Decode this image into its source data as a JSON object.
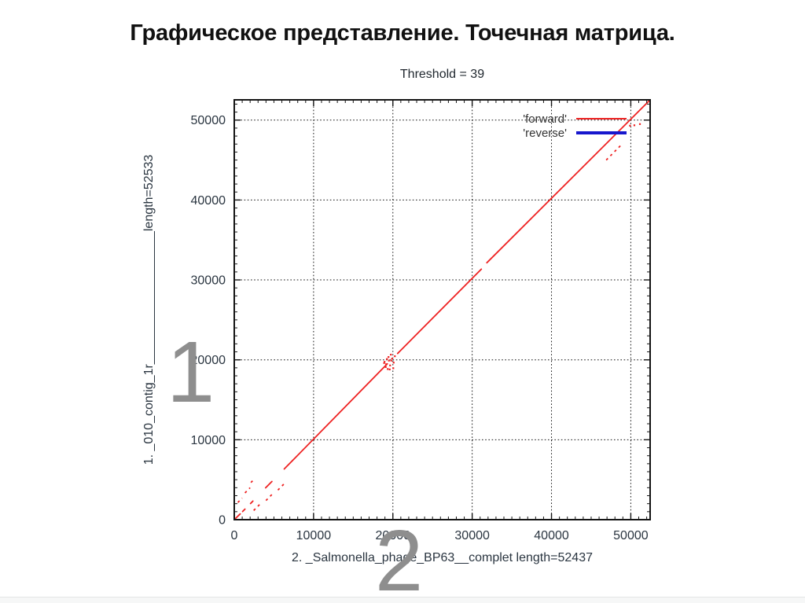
{
  "slide": {
    "title": "Графическое представление. Точечная матрица.",
    "watermark_1": "1",
    "watermark_2": "2"
  },
  "chart_data": {
    "type": "scatter",
    "subtype": "dotplot-sequence-alignment",
    "title": "Threshold = 39",
    "xlabel": "2. _Salmonella_phage_BP63__complet length=52437",
    "ylabel": "1. _010_contig_1r___________________length=52533",
    "xlim": [
      0,
      52437
    ],
    "ylim": [
      0,
      52533
    ],
    "x_major_ticks": [
      0,
      10000,
      20000,
      30000,
      40000,
      50000
    ],
    "y_major_ticks": [
      0,
      10000,
      20000,
      30000,
      40000,
      50000
    ],
    "minor_tick_step": 1000,
    "major_tick_step": 10000,
    "grid": "dotted-at-major-ticks",
    "grid_color": "#151515",
    "axis_color": "#151515",
    "legend": {
      "position": "top-right-inside",
      "entries": [
        {
          "label": "'forward'",
          "color": "#ee2222",
          "width": 2
        },
        {
          "label": "'reverse'",
          "color": "#1717cd",
          "width": 4
        }
      ]
    },
    "series": [
      {
        "name": "forward",
        "color": "#ee2222",
        "width": 1.8,
        "segments": [
          [
            50,
            50,
            750,
            720
          ],
          [
            1050,
            1020,
            1350,
            1320
          ],
          [
            2050,
            2020,
            2350,
            2330
          ],
          [
            3950,
            3980,
            4750,
            4780
          ],
          [
            6300,
            6340,
            7350,
            7400
          ],
          [
            7350,
            7400,
            19300,
            19500
          ],
          [
            20600,
            20800,
            31150,
            31350
          ],
          [
            31850,
            32150,
            52437,
            52533
          ]
        ],
        "dashed_segments": [
          [
            450,
            2150,
            1000,
            2700
          ],
          [
            1350,
            3350,
            2000,
            4000
          ],
          [
            2100,
            4650,
            2600,
            5150
          ],
          [
            2450,
            1150,
            3450,
            2150
          ],
          [
            4000,
            2400,
            5000,
            3400
          ],
          [
            5500,
            3700,
            6400,
            4600
          ],
          [
            46900,
            45000,
            48800,
            46900
          ]
        ],
        "points": [
          [
            18900,
            19600
          ],
          [
            19100,
            19100
          ],
          [
            19350,
            18850
          ],
          [
            19500,
            19900
          ],
          [
            19650,
            19300
          ],
          [
            19450,
            20350
          ],
          [
            19750,
            20650
          ],
          [
            19900,
            20150
          ],
          [
            20100,
            19650
          ],
          [
            19250,
            20100
          ],
          [
            18950,
            19750
          ],
          [
            20250,
            20450
          ],
          [
            19600,
            18800
          ],
          [
            20050,
            18950
          ],
          [
            19800,
            19900
          ],
          [
            19150,
            19450
          ],
          [
            49900,
            49300
          ],
          [
            50450,
            49350
          ],
          [
            51150,
            49500
          ]
        ]
      },
      {
        "name": "reverse",
        "color": "#1717cd",
        "width": 4,
        "segments": [],
        "dashed_segments": [],
        "points": []
      }
    ]
  }
}
